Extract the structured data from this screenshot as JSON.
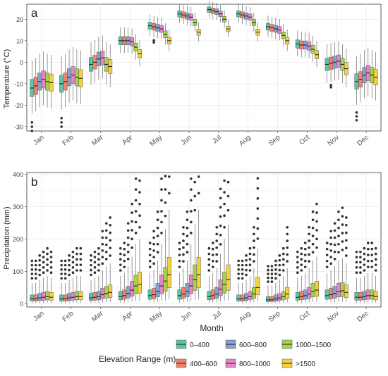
{
  "legend": {
    "title": "Elevation Range (m)",
    "items": [
      {
        "label": "0–400",
        "color": "#5ec4a8"
      },
      {
        "label": "400–600",
        "color": "#f0826a"
      },
      {
        "label": "600–800",
        "color": "#8aa0cf"
      },
      {
        "label": "800–1000",
        "color": "#e486c6"
      },
      {
        "label": "1000–1500",
        "color": "#a6d24e"
      },
      {
        "label": ">1500",
        "color": "#f5d23d"
      }
    ]
  },
  "chart_data": [
    {
      "type": "box",
      "panel_label": "a",
      "ylabel": "Temperature (°C)",
      "xlabel": "",
      "ylim": [
        -32,
        27
      ],
      "yticks": [
        -30,
        -20,
        -10,
        0,
        10,
        20
      ],
      "grid": true,
      "categories": [
        "Jan",
        "Feb",
        "Mar",
        "Apr",
        "May",
        "Jun",
        "Jul",
        "Aug",
        "Sep",
        "Oct",
        "Nov",
        "Dec"
      ],
      "series": [
        {
          "name": "0–400",
          "median": [
            -12,
            -10,
            -1,
            10,
            17,
            22.5,
            24.5,
            22.5,
            16.5,
            8.5,
            -1,
            -9
          ]
        },
        {
          "name": "400–600",
          "median": [
            -11,
            -9,
            0,
            10,
            16.5,
            22,
            24,
            22,
            16,
            8,
            -0.5,
            -8
          ]
        },
        {
          "name": "600–800",
          "median": [
            -9,
            -7,
            1.5,
            10,
            16,
            21.5,
            23.5,
            21.5,
            15.5,
            8,
            0,
            -6
          ]
        },
        {
          "name": "800–1000",
          "median": [
            -8,
            -6,
            2,
            9.5,
            15.5,
            21,
            22.5,
            21,
            15,
            7.5,
            0.5,
            -5
          ]
        },
        {
          "name": "1000–1500",
          "median": [
            -9,
            -7,
            -1,
            7,
            13,
            18.5,
            20,
            18.5,
            12.5,
            6,
            -1,
            -6
          ]
        },
        {
          "name": ">1500",
          "median": [
            -9.5,
            -7.5,
            -2,
            4,
            10,
            14,
            15.5,
            14,
            10,
            3.5,
            -3,
            -7
          ]
        }
      ]
    },
    {
      "type": "box",
      "panel_label": "b",
      "ylabel": "Precipitation (mm)",
      "xlabel": "Month",
      "ylim": [
        -10,
        405
      ],
      "yticks": [
        0,
        100,
        200,
        300,
        400
      ],
      "grid": true,
      "categories": [
        "Jan",
        "Feb",
        "Mar",
        "Apr",
        "May",
        "Jun",
        "Jul",
        "Aug",
        "Sep",
        "Oct",
        "Nov",
        "Dec"
      ],
      "series": [
        {
          "name": "0–400",
          "median": [
            15,
            15,
            18,
            22,
            25,
            25,
            22,
            15,
            12,
            20,
            25,
            20
          ]
        },
        {
          "name": "400–600",
          "median": [
            15,
            15,
            20,
            25,
            28,
            30,
            25,
            15,
            12,
            22,
            28,
            20
          ]
        },
        {
          "name": "600–800",
          "median": [
            18,
            18,
            22,
            32,
            38,
            38,
            30,
            18,
            15,
            25,
            32,
            22
          ]
        },
        {
          "name": "800–1000",
          "median": [
            20,
            20,
            28,
            42,
            55,
            55,
            45,
            22,
            18,
            30,
            38,
            25
          ]
        },
        {
          "name": "1000–1500",
          "median": [
            22,
            22,
            32,
            55,
            70,
            75,
            60,
            30,
            22,
            38,
            40,
            25
          ]
        },
        {
          "name": ">1500",
          "median": [
            20,
            22,
            35,
            60,
            90,
            90,
            75,
            50,
            30,
            42,
            35,
            22
          ]
        }
      ]
    }
  ]
}
